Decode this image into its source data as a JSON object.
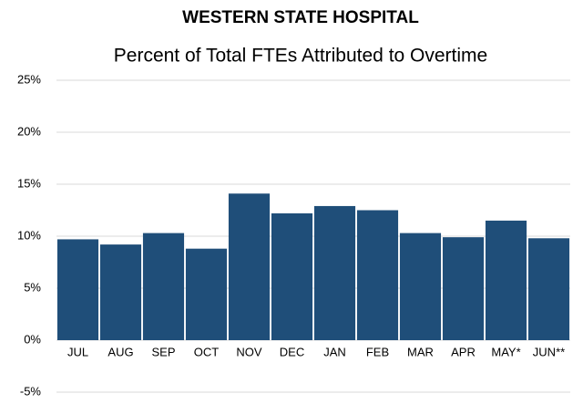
{
  "chart_data": {
    "type": "bar",
    "title": "WESTERN STATE HOSPITAL",
    "subtitle": "Percent of Total FTEs Attributed to Overtime",
    "categories": [
      "JUL",
      "AUG",
      "SEP",
      "OCT",
      "NOV",
      "DEC",
      "JAN",
      "FEB",
      "MAR",
      "APR",
      "MAY*",
      "JUN**"
    ],
    "values": [
      9.7,
      9.2,
      10.3,
      8.8,
      14.1,
      12.2,
      12.9,
      12.5,
      10.3,
      9.9,
      11.5,
      9.8
    ],
    "color": "#1f4e79",
    "ylim": [
      -5,
      25
    ],
    "yticks": [
      {
        "value": -5,
        "label": "-5%"
      },
      {
        "value": 0,
        "label": "0%"
      },
      {
        "value": 5,
        "label": "5%"
      },
      {
        "value": 10,
        "label": "10%"
      },
      {
        "value": 15,
        "label": "15%"
      },
      {
        "value": 20,
        "label": "20%"
      },
      {
        "value": 25,
        "label": "25%"
      }
    ],
    "grid": true
  }
}
